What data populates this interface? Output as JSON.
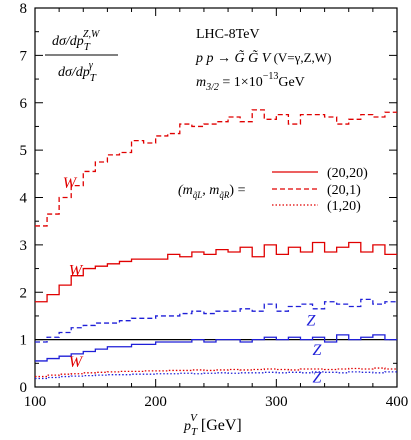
{
  "chart_data": {
    "type": "line",
    "step": true,
    "xlabel": "p_T^V [GeV]",
    "ylabel": "dσ/dp_T^{Z,W} / dσ/dp_T^γ",
    "xlim": [
      100,
      400
    ],
    "ylim": [
      0,
      8
    ],
    "x_ticks": [
      100,
      200,
      300,
      400
    ],
    "y_ticks": [
      0,
      1,
      2,
      3,
      4,
      5,
      6,
      7,
      8
    ],
    "reference_line": 1,
    "annotation": {
      "line1": "LHC-8TeV",
      "line2": "p p → G̃ G̃ V  (V=γ,Z,W)",
      "line3": "m_{3/2} = 1×10^{-13} GeV"
    },
    "legend": {
      "prefix": "(m_{q̃L}, m_{q̃R}) =",
      "entries": [
        {
          "label": "(20,20)",
          "style": "solid"
        },
        {
          "label": "(20,1)",
          "style": "dashed"
        },
        {
          "label": "(1,20)",
          "style": "dotted"
        }
      ]
    },
    "curve_labels": [
      {
        "text": "W",
        "color": "#e00000",
        "x": 123,
        "y": 4.2
      },
      {
        "text": "W",
        "color": "#e00000",
        "x": 128,
        "y": 2.35
      },
      {
        "text": "W",
        "color": "#e00000",
        "x": 128,
        "y": 0.42
      },
      {
        "text": "Z",
        "color": "#1f1fd8",
        "x": 325,
        "y": 1.3
      },
      {
        "text": "Z",
        "color": "#1f1fd8",
        "x": 330,
        "y": 0.68
      },
      {
        "text": "Z",
        "color": "#1f1fd8",
        "x": 330,
        "y": 0.1
      }
    ],
    "x": [
      100,
      110,
      120,
      130,
      140,
      150,
      160,
      170,
      180,
      190,
      200,
      210,
      220,
      230,
      240,
      250,
      260,
      270,
      280,
      290,
      300,
      310,
      320,
      330,
      340,
      350,
      360,
      370,
      380,
      390,
      400
    ],
    "series": [
      {
        "name": "W (20,1)",
        "color": "#e00000",
        "style": "dashed",
        "values": [
          3.4,
          3.65,
          4.0,
          4.25,
          4.55,
          4.75,
          4.9,
          4.95,
          5.2,
          5.15,
          5.3,
          5.35,
          5.55,
          5.5,
          5.55,
          5.6,
          5.7,
          5.6,
          5.85,
          5.65,
          5.75,
          5.55,
          5.75,
          5.75,
          5.7,
          5.55,
          5.65,
          5.75,
          5.7,
          5.8,
          5.75
        ]
      },
      {
        "name": "W (20,20)",
        "color": "#e00000",
        "style": "solid",
        "values": [
          1.8,
          1.95,
          2.15,
          2.35,
          2.5,
          2.55,
          2.6,
          2.65,
          2.7,
          2.7,
          2.7,
          2.8,
          2.75,
          2.85,
          2.8,
          2.9,
          2.85,
          2.95,
          2.75,
          3.0,
          2.8,
          2.95,
          2.85,
          3.05,
          2.85,
          2.95,
          3.05,
          2.85,
          3.0,
          2.8,
          3.05
        ]
      },
      {
        "name": "Z (20,1)",
        "color": "#1f1fd8",
        "style": "dashed",
        "values": [
          0.95,
          1.05,
          1.15,
          1.25,
          1.3,
          1.35,
          1.35,
          1.4,
          1.45,
          1.45,
          1.5,
          1.5,
          1.55,
          1.6,
          1.55,
          1.6,
          1.6,
          1.65,
          1.6,
          1.75,
          1.6,
          1.7,
          1.75,
          1.65,
          1.8,
          1.75,
          1.7,
          1.85,
          1.75,
          1.8,
          1.85
        ]
      },
      {
        "name": "Z (20,20)",
        "color": "#1f1fd8",
        "style": "solid",
        "values": [
          0.55,
          0.6,
          0.65,
          0.7,
          0.75,
          0.8,
          0.85,
          0.85,
          0.9,
          0.9,
          0.95,
          0.95,
          0.95,
          1.0,
          0.95,
          1.0,
          1.0,
          0.95,
          1.0,
          1.05,
          1.0,
          1.05,
          1.0,
          1.05,
          0.95,
          1.1,
          1.0,
          1.05,
          1.1,
          1.0,
          1.05
        ]
      },
      {
        "name": "W (1,20)",
        "color": "#e00000",
        "style": "dotted",
        "values": [
          0.22,
          0.25,
          0.27,
          0.28,
          0.3,
          0.31,
          0.32,
          0.33,
          0.33,
          0.34,
          0.34,
          0.35,
          0.35,
          0.36,
          0.35,
          0.36,
          0.37,
          0.36,
          0.37,
          0.38,
          0.37,
          0.36,
          0.38,
          0.38,
          0.37,
          0.38,
          0.39,
          0.38,
          0.4,
          0.38,
          0.37
        ]
      },
      {
        "name": "Z (1,20)",
        "color": "#1f1fd8",
        "style": "dotted",
        "values": [
          0.18,
          0.2,
          0.22,
          0.23,
          0.24,
          0.25,
          0.26,
          0.26,
          0.27,
          0.27,
          0.28,
          0.28,
          0.29,
          0.28,
          0.29,
          0.3,
          0.29,
          0.3,
          0.3,
          0.31,
          0.3,
          0.31,
          0.3,
          0.32,
          0.31,
          0.3,
          0.32,
          0.31,
          0.3,
          0.32,
          0.31
        ]
      }
    ]
  }
}
